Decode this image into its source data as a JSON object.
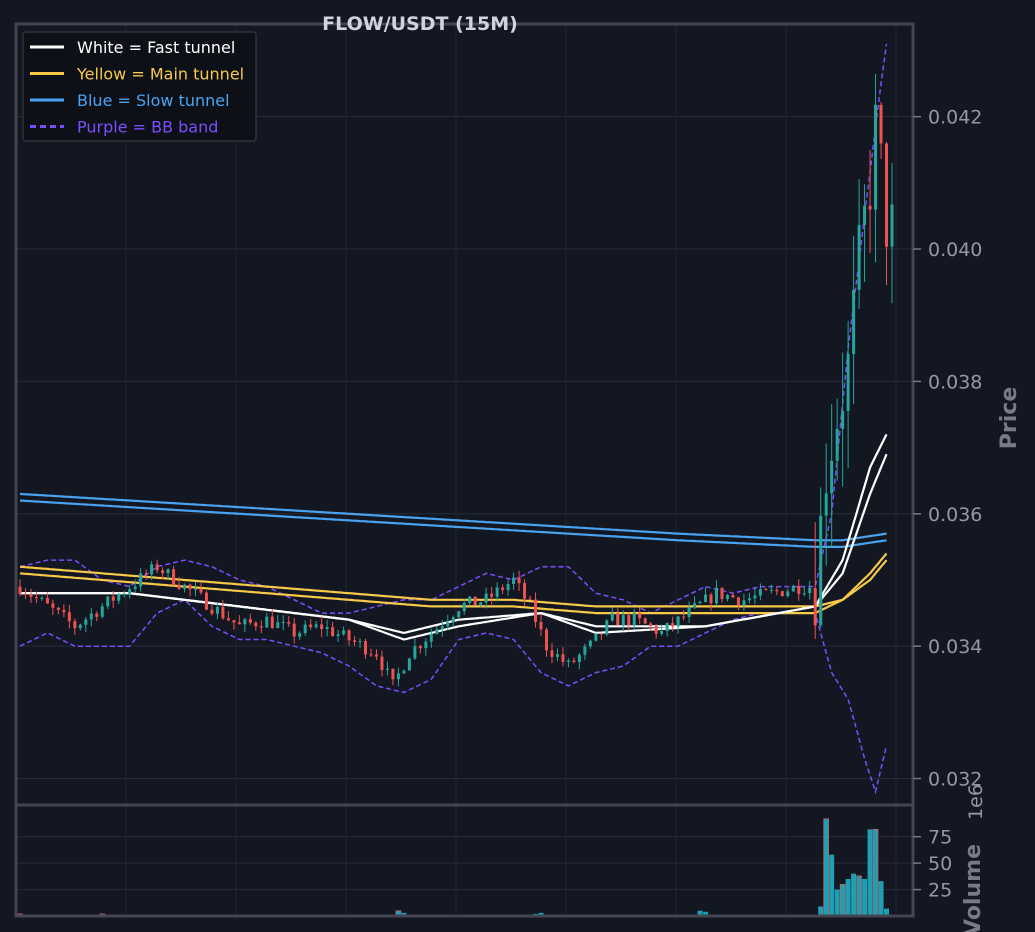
{
  "chart_data": {
    "type": "candlestick",
    "title": "FLOW/USDT (15M)",
    "price_axis": {
      "label": "Price",
      "ylim": [
        0.0316,
        0.0434
      ],
      "ticks": [
        "0.032",
        "0.034",
        "0.036",
        "0.038",
        "0.040",
        "0.042"
      ],
      "tick_values": [
        0.032,
        0.034,
        0.036,
        0.038,
        0.04,
        0.042
      ]
    },
    "volume_axis": {
      "label": "Volume",
      "multiplier_label": "1e6",
      "ylim": [
        0,
        105
      ],
      "ticks": [
        "25",
        "50",
        "75"
      ],
      "tick_values": [
        25,
        50,
        75
      ]
    },
    "grid": true,
    "legend_position": "top-left",
    "legend": [
      {
        "label": "White = Fast tunnel",
        "color": "#ffffff",
        "dash": false
      },
      {
        "label": "Yellow = Main tunnel",
        "color": "#f7c948",
        "dash": false
      },
      {
        "label": "Blue = Slow tunnel",
        "color": "#4aa3f0",
        "dash": false
      },
      {
        "label": "Purple = BB band",
        "color": "#7c4dff",
        "dash": true
      }
    ],
    "colors": {
      "up": "#26a69a",
      "down": "#ef5350",
      "volume": "#1e9fb4",
      "background": "#131722"
    },
    "candle_count": 160,
    "close_anchors": [
      [
        0,
        0.0349
      ],
      [
        5,
        0.0346
      ],
      [
        10,
        0.0343
      ],
      [
        15,
        0.0346
      ],
      [
        20,
        0.0349
      ],
      [
        25,
        0.0352
      ],
      [
        30,
        0.0349
      ],
      [
        35,
        0.0346
      ],
      [
        40,
        0.0343
      ],
      [
        45,
        0.0344
      ],
      [
        50,
        0.0342
      ],
      [
        55,
        0.0343
      ],
      [
        60,
        0.0341
      ],
      [
        65,
        0.0339
      ],
      [
        68,
        0.0334
      ],
      [
        71,
        0.0339
      ],
      [
        75,
        0.0342
      ],
      [
        80,
        0.0346
      ],
      [
        85,
        0.0347
      ],
      [
        90,
        0.035
      ],
      [
        93,
        0.0346
      ],
      [
        96,
        0.034
      ],
      [
        100,
        0.0337
      ],
      [
        104,
        0.034
      ],
      [
        108,
        0.0344
      ],
      [
        112,
        0.0344
      ],
      [
        117,
        0.0342
      ],
      [
        122,
        0.0345
      ],
      [
        127,
        0.0348
      ],
      [
        132,
        0.0347
      ],
      [
        137,
        0.0348
      ],
      [
        142,
        0.0349
      ],
      [
        145,
        0.0349
      ],
      [
        147,
        0.0367
      ],
      [
        149,
        0.0375
      ],
      [
        151,
        0.0382
      ],
      [
        153,
        0.0398
      ],
      [
        155,
        0.041
      ],
      [
        156,
        0.0418
      ],
      [
        157,
        0.0412
      ],
      [
        158,
        0.0404
      ],
      [
        159,
        0.0403
      ]
    ],
    "fast_tunnel": [
      [
        [
          0,
          0.0348
        ],
        [
          20,
          0.0348
        ],
        [
          40,
          0.0346
        ],
        [
          60,
          0.0344
        ],
        [
          70,
          0.0342
        ],
        [
          80,
          0.0344
        ],
        [
          95,
          0.0345
        ],
        [
          105,
          0.0342
        ],
        [
          125,
          0.0343
        ],
        [
          145,
          0.0346
        ],
        [
          150,
          0.0353
        ],
        [
          155,
          0.0367
        ],
        [
          158,
          0.0372
        ]
      ],
      [
        [
          0,
          0.0348
        ],
        [
          20,
          0.0348
        ],
        [
          40,
          0.0346
        ],
        [
          60,
          0.0344
        ],
        [
          70,
          0.0341
        ],
        [
          80,
          0.0343
        ],
        [
          95,
          0.0345
        ],
        [
          105,
          0.0343
        ],
        [
          125,
          0.0343
        ],
        [
          145,
          0.0346
        ],
        [
          150,
          0.0351
        ],
        [
          155,
          0.0363
        ],
        [
          158,
          0.0369
        ]
      ]
    ],
    "main_tunnel": [
      [
        [
          0,
          0.0352
        ],
        [
          30,
          0.035
        ],
        [
          60,
          0.0348
        ],
        [
          75,
          0.0347
        ],
        [
          90,
          0.0347
        ],
        [
          105,
          0.0346
        ],
        [
          125,
          0.0346
        ],
        [
          145,
          0.0346
        ],
        [
          150,
          0.0347
        ],
        [
          155,
          0.0351
        ],
        [
          158,
          0.0354
        ]
      ],
      [
        [
          0,
          0.0351
        ],
        [
          30,
          0.0349
        ],
        [
          60,
          0.0347
        ],
        [
          75,
          0.0346
        ],
        [
          90,
          0.0346
        ],
        [
          105,
          0.0345
        ],
        [
          125,
          0.0345
        ],
        [
          145,
          0.0345
        ],
        [
          150,
          0.0347
        ],
        [
          155,
          0.035
        ],
        [
          158,
          0.0353
        ]
      ]
    ],
    "slow_tunnel": [
      [
        [
          0,
          0.0363
        ],
        [
          40,
          0.0361
        ],
        [
          80,
          0.0359
        ],
        [
          120,
          0.0357
        ],
        [
          145,
          0.0356
        ],
        [
          150,
          0.0356
        ],
        [
          158,
          0.0357
        ]
      ],
      [
        [
          0,
          0.0362
        ],
        [
          40,
          0.036
        ],
        [
          80,
          0.0358
        ],
        [
          120,
          0.0356
        ],
        [
          145,
          0.0355
        ],
        [
          150,
          0.0355
        ],
        [
          158,
          0.0356
        ]
      ]
    ],
    "bb_upper": [
      [
        0,
        0.0352
      ],
      [
        5,
        0.0353
      ],
      [
        10,
        0.0353
      ],
      [
        15,
        0.035
      ],
      [
        20,
        0.0349
      ],
      [
        25,
        0.0352
      ],
      [
        30,
        0.0353
      ],
      [
        35,
        0.0352
      ],
      [
        40,
        0.035
      ],
      [
        45,
        0.0349
      ],
      [
        50,
        0.0347
      ],
      [
        55,
        0.0345
      ],
      [
        60,
        0.0345
      ],
      [
        65,
        0.0346
      ],
      [
        70,
        0.0347
      ],
      [
        75,
        0.0347
      ],
      [
        80,
        0.0349
      ],
      [
        85,
        0.0351
      ],
      [
        90,
        0.035
      ],
      [
        95,
        0.0352
      ],
      [
        100,
        0.0352
      ],
      [
        105,
        0.0348
      ],
      [
        110,
        0.0347
      ],
      [
        115,
        0.0345
      ],
      [
        120,
        0.0347
      ],
      [
        125,
        0.0349
      ],
      [
        130,
        0.0348
      ],
      [
        135,
        0.0349
      ],
      [
        140,
        0.0349
      ],
      [
        145,
        0.0349
      ],
      [
        148,
        0.036
      ],
      [
        151,
        0.0385
      ],
      [
        154,
        0.0405
      ],
      [
        157,
        0.0425
      ],
      [
        158,
        0.0431
      ]
    ],
    "bb_lower": [
      [
        0,
        0.034
      ],
      [
        5,
        0.0342
      ],
      [
        10,
        0.034
      ],
      [
        15,
        0.034
      ],
      [
        20,
        0.034
      ],
      [
        25,
        0.0345
      ],
      [
        30,
        0.0347
      ],
      [
        35,
        0.0343
      ],
      [
        40,
        0.0341
      ],
      [
        45,
        0.0341
      ],
      [
        50,
        0.034
      ],
      [
        55,
        0.0339
      ],
      [
        60,
        0.0337
      ],
      [
        65,
        0.0334
      ],
      [
        70,
        0.0333
      ],
      [
        75,
        0.0335
      ],
      [
        80,
        0.0341
      ],
      [
        85,
        0.0342
      ],
      [
        90,
        0.0341
      ],
      [
        95,
        0.0336
      ],
      [
        100,
        0.0334
      ],
      [
        105,
        0.0336
      ],
      [
        110,
        0.0337
      ],
      [
        115,
        0.034
      ],
      [
        120,
        0.034
      ],
      [
        125,
        0.0342
      ],
      [
        130,
        0.0344
      ],
      [
        135,
        0.0345
      ],
      [
        140,
        0.0345
      ],
      [
        145,
        0.0345
      ],
      [
        148,
        0.0336
      ],
      [
        151,
        0.0332
      ],
      [
        154,
        0.0323
      ],
      [
        156,
        0.0318
      ],
      [
        158,
        0.0325
      ]
    ],
    "volume_spikes": [
      [
        0,
        2
      ],
      [
        2,
        1
      ],
      [
        7,
        1
      ],
      [
        15,
        2
      ],
      [
        18,
        1
      ],
      [
        20,
        1
      ],
      [
        24,
        1
      ],
      [
        30,
        1
      ],
      [
        33,
        1
      ],
      [
        46,
        1
      ],
      [
        51,
        1
      ],
      [
        69,
        5
      ],
      [
        70,
        3
      ],
      [
        72,
        1
      ],
      [
        74,
        1
      ],
      [
        76,
        1
      ],
      [
        80,
        1
      ],
      [
        85,
        1
      ],
      [
        90,
        1
      ],
      [
        94,
        2
      ],
      [
        95,
        3
      ],
      [
        120,
        1
      ],
      [
        124,
        5
      ],
      [
        125,
        4
      ],
      [
        146,
        9
      ],
      [
        147,
        92
      ],
      [
        148,
        58
      ],
      [
        149,
        25
      ],
      [
        150,
        30
      ],
      [
        151,
        35
      ],
      [
        152,
        40
      ],
      [
        153,
        38
      ],
      [
        154,
        35
      ],
      [
        155,
        82
      ],
      [
        156,
        82
      ],
      [
        157,
        33
      ],
      [
        158,
        7
      ]
    ]
  }
}
